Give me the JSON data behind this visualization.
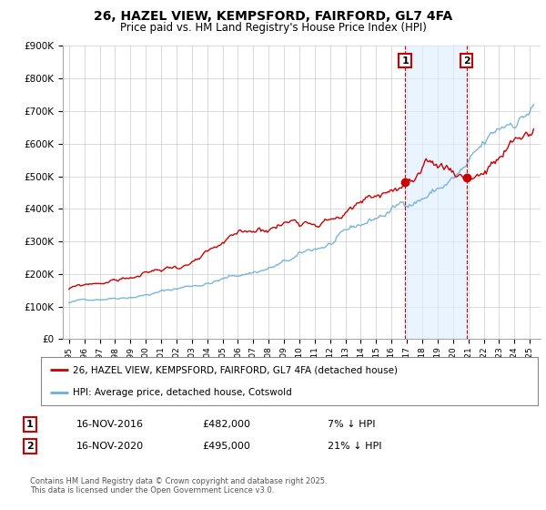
{
  "title": "26, HAZEL VIEW, KEMPSFORD, FAIRFORD, GL7 4FA",
  "subtitle": "Price paid vs. HM Land Registry's House Price Index (HPI)",
  "ylim": [
    0,
    900000
  ],
  "yticks": [
    0,
    100000,
    200000,
    300000,
    400000,
    500000,
    600000,
    700000,
    800000,
    900000
  ],
  "ytick_labels": [
    "£0",
    "£100K",
    "£200K",
    "£300K",
    "£400K",
    "£500K",
    "£600K",
    "£700K",
    "£800K",
    "£900K"
  ],
  "hpi_color": "#6baed6",
  "price_color": "#cc0000",
  "marker1_date": 2016.88,
  "marker2_date": 2020.88,
  "marker1_price": 482000,
  "marker2_price": 495000,
  "marker1_label": "16-NOV-2016",
  "marker2_label": "16-NOV-2020",
  "marker1_hpi_pct": "7% ↓ HPI",
  "marker2_hpi_pct": "21% ↓ HPI",
  "legend_price_label": "26, HAZEL VIEW, KEMPSFORD, FAIRFORD, GL7 4FA (detached house)",
  "legend_hpi_label": "HPI: Average price, detached house, Cotswold",
  "footer": "Contains HM Land Registry data © Crown copyright and database right 2025.\nThis data is licensed under the Open Government Licence v3.0.",
  "background_color": "#ffffff",
  "grid_color": "#cccccc",
  "shade_color": "#ddeeff"
}
